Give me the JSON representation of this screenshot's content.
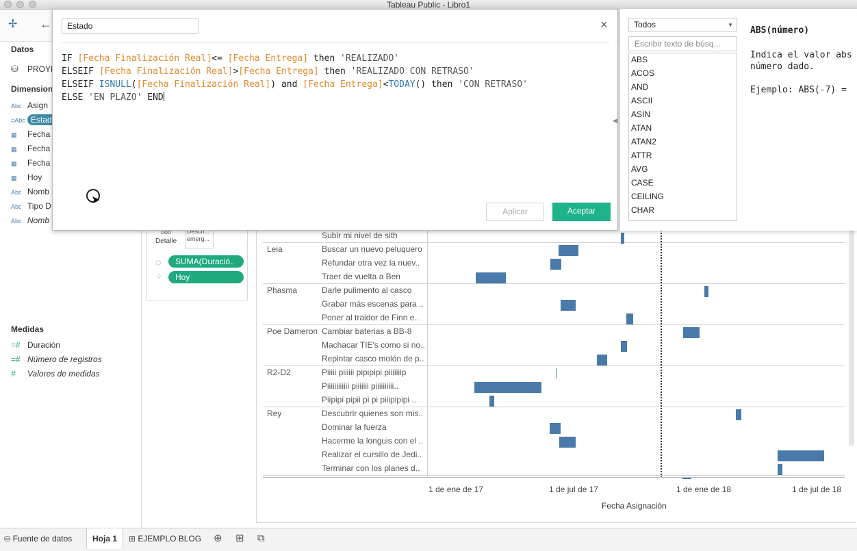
{
  "window": {
    "title": "Tableau Public - Libro1"
  },
  "data_pane": {
    "datos_header": "Datos",
    "datasource": "PROYE",
    "dimensions_header": "Dimension",
    "dimensions": [
      {
        "icon": "Abc",
        "name": "Asign"
      },
      {
        "icon": "=Abc",
        "name": "Estad"
      },
      {
        "icon": "calendar-icon",
        "name": "Fecha"
      },
      {
        "icon": "calendar-icon",
        "name": "Fecha"
      },
      {
        "icon": "calendar-icon",
        "name": "Fecha"
      },
      {
        "icon": "calendar-icon",
        "name": "Hoy"
      },
      {
        "icon": "Abc",
        "name": "Nomb"
      },
      {
        "icon": "Abc",
        "name": "Tipo D"
      },
      {
        "icon": "Abc",
        "name": "Nomb"
      }
    ],
    "measures_header": "Medidas",
    "measures": [
      {
        "icon": "=#",
        "name": "Duración"
      },
      {
        "icon": "=#",
        "name": "Número de registros"
      },
      {
        "icon": "#",
        "name": "Valores de medidas"
      }
    ]
  },
  "marks": {
    "detail_label": "Detalle",
    "desc_label": "Descri... emerg...",
    "pills": [
      "SUMA(Duració..",
      "Hoy"
    ]
  },
  "calc_editor": {
    "name_value": "Estado",
    "code_lines": [
      [
        {
          "t": "k",
          "v": "IF "
        },
        {
          "t": "f",
          "v": "[Fecha Finalización Real]"
        },
        {
          "t": "k",
          "v": "<= "
        },
        {
          "t": "f",
          "v": "[Fecha Entrega]"
        },
        {
          "t": "k",
          "v": " then "
        },
        {
          "t": "s",
          "v": "'REALIZADO'"
        }
      ],
      [
        {
          "t": "k",
          "v": "ELSEIF "
        },
        {
          "t": "f",
          "v": "[Fecha Finalización Real]"
        },
        {
          "t": "k",
          "v": ">"
        },
        {
          "t": "f",
          "v": "[Fecha Entrega]"
        },
        {
          "t": "k",
          "v": " then "
        },
        {
          "t": "s",
          "v": "'REALIZADO CON RETRASO'"
        }
      ],
      [
        {
          "t": "k",
          "v": "ELSEIF "
        },
        {
          "t": "fn",
          "v": "ISNULL"
        },
        {
          "t": "k",
          "v": "("
        },
        {
          "t": "f",
          "v": "[Fecha Finalización Real]"
        },
        {
          "t": "k",
          "v": ") and "
        },
        {
          "t": "f",
          "v": "[Fecha Entrega]"
        },
        {
          "t": "k",
          "v": "<"
        },
        {
          "t": "fn",
          "v": "TODAY"
        },
        {
          "t": "k",
          "v": "() then "
        },
        {
          "t": "s",
          "v": "'CON RETRASO'"
        }
      ],
      [
        {
          "t": "k",
          "v": "ELSE "
        },
        {
          "t": "s",
          "v": "'EN PLAZO'"
        },
        {
          "t": "k",
          "v": " END"
        }
      ]
    ],
    "apply_label": "Aplicar",
    "accept_label": "Aceptar"
  },
  "functions_panel": {
    "category": "Todos",
    "search_placeholder": "Escribir texto de búsq...",
    "functions": [
      "ABS",
      "ACOS",
      "AND",
      "ASCII",
      "ASIN",
      "ATAN",
      "ATAN2",
      "ATTR",
      "AVG",
      "CASE",
      "CEILING",
      "CHAR"
    ],
    "help_title": "ABS(número)",
    "help_lines": [
      "Indica el valor abs",
      "número dado."
    ],
    "help_example": "Ejemplo: ABS(-7) ="
  },
  "viz": {
    "top_row": "Subir mi nivel de sith",
    "groups": [
      {
        "name": "Leia",
        "tasks": [
          "Buscar un nuevo peluquero",
          "Refundar otra vez la nuev..",
          "Traer de vuelta a Ben"
        ]
      },
      {
        "name": "Phasma",
        "tasks": [
          "Darle pulimento al casco",
          "Grabar más escenas para ..",
          "Poner al traidor de Finn e.."
        ]
      },
      {
        "name": "Poe Dameron",
        "tasks": [
          "Cambiar baterias a BB-8",
          "Machacar TIE's como si no..",
          "Repintar casco molón de p.."
        ]
      },
      {
        "name": "R2-D2",
        "tasks": [
          "Piiiii piiiiii pipipipi piiiiiiip",
          "Piiiiiiiiiiii piiiiiii piiiiiiiiii..",
          "Piipipi pipii pi pi piiipipipi .."
        ]
      },
      {
        "name": "Rey",
        "tasks": [
          "Descubrir quienes son mis..",
          "Dominar la fuerza",
          "Hacerme la longuis con el ..",
          "Realizar el cursillo de Jedi..",
          "Terminar con los planes d.."
        ]
      }
    ],
    "axis_ticks": [
      "1 de ene de 17",
      "1 de jul de 17",
      "1 de ene de 18",
      "1 de jul de 18"
    ],
    "axis_title": "Fecha Asignación",
    "bar_color": "#4a7aa9"
  },
  "status_bar": {
    "datasource_tab": "Fuente de datos",
    "sheet_tab": "Hoja 1",
    "dashboard_tab": "EJEMPLO BLOG"
  }
}
